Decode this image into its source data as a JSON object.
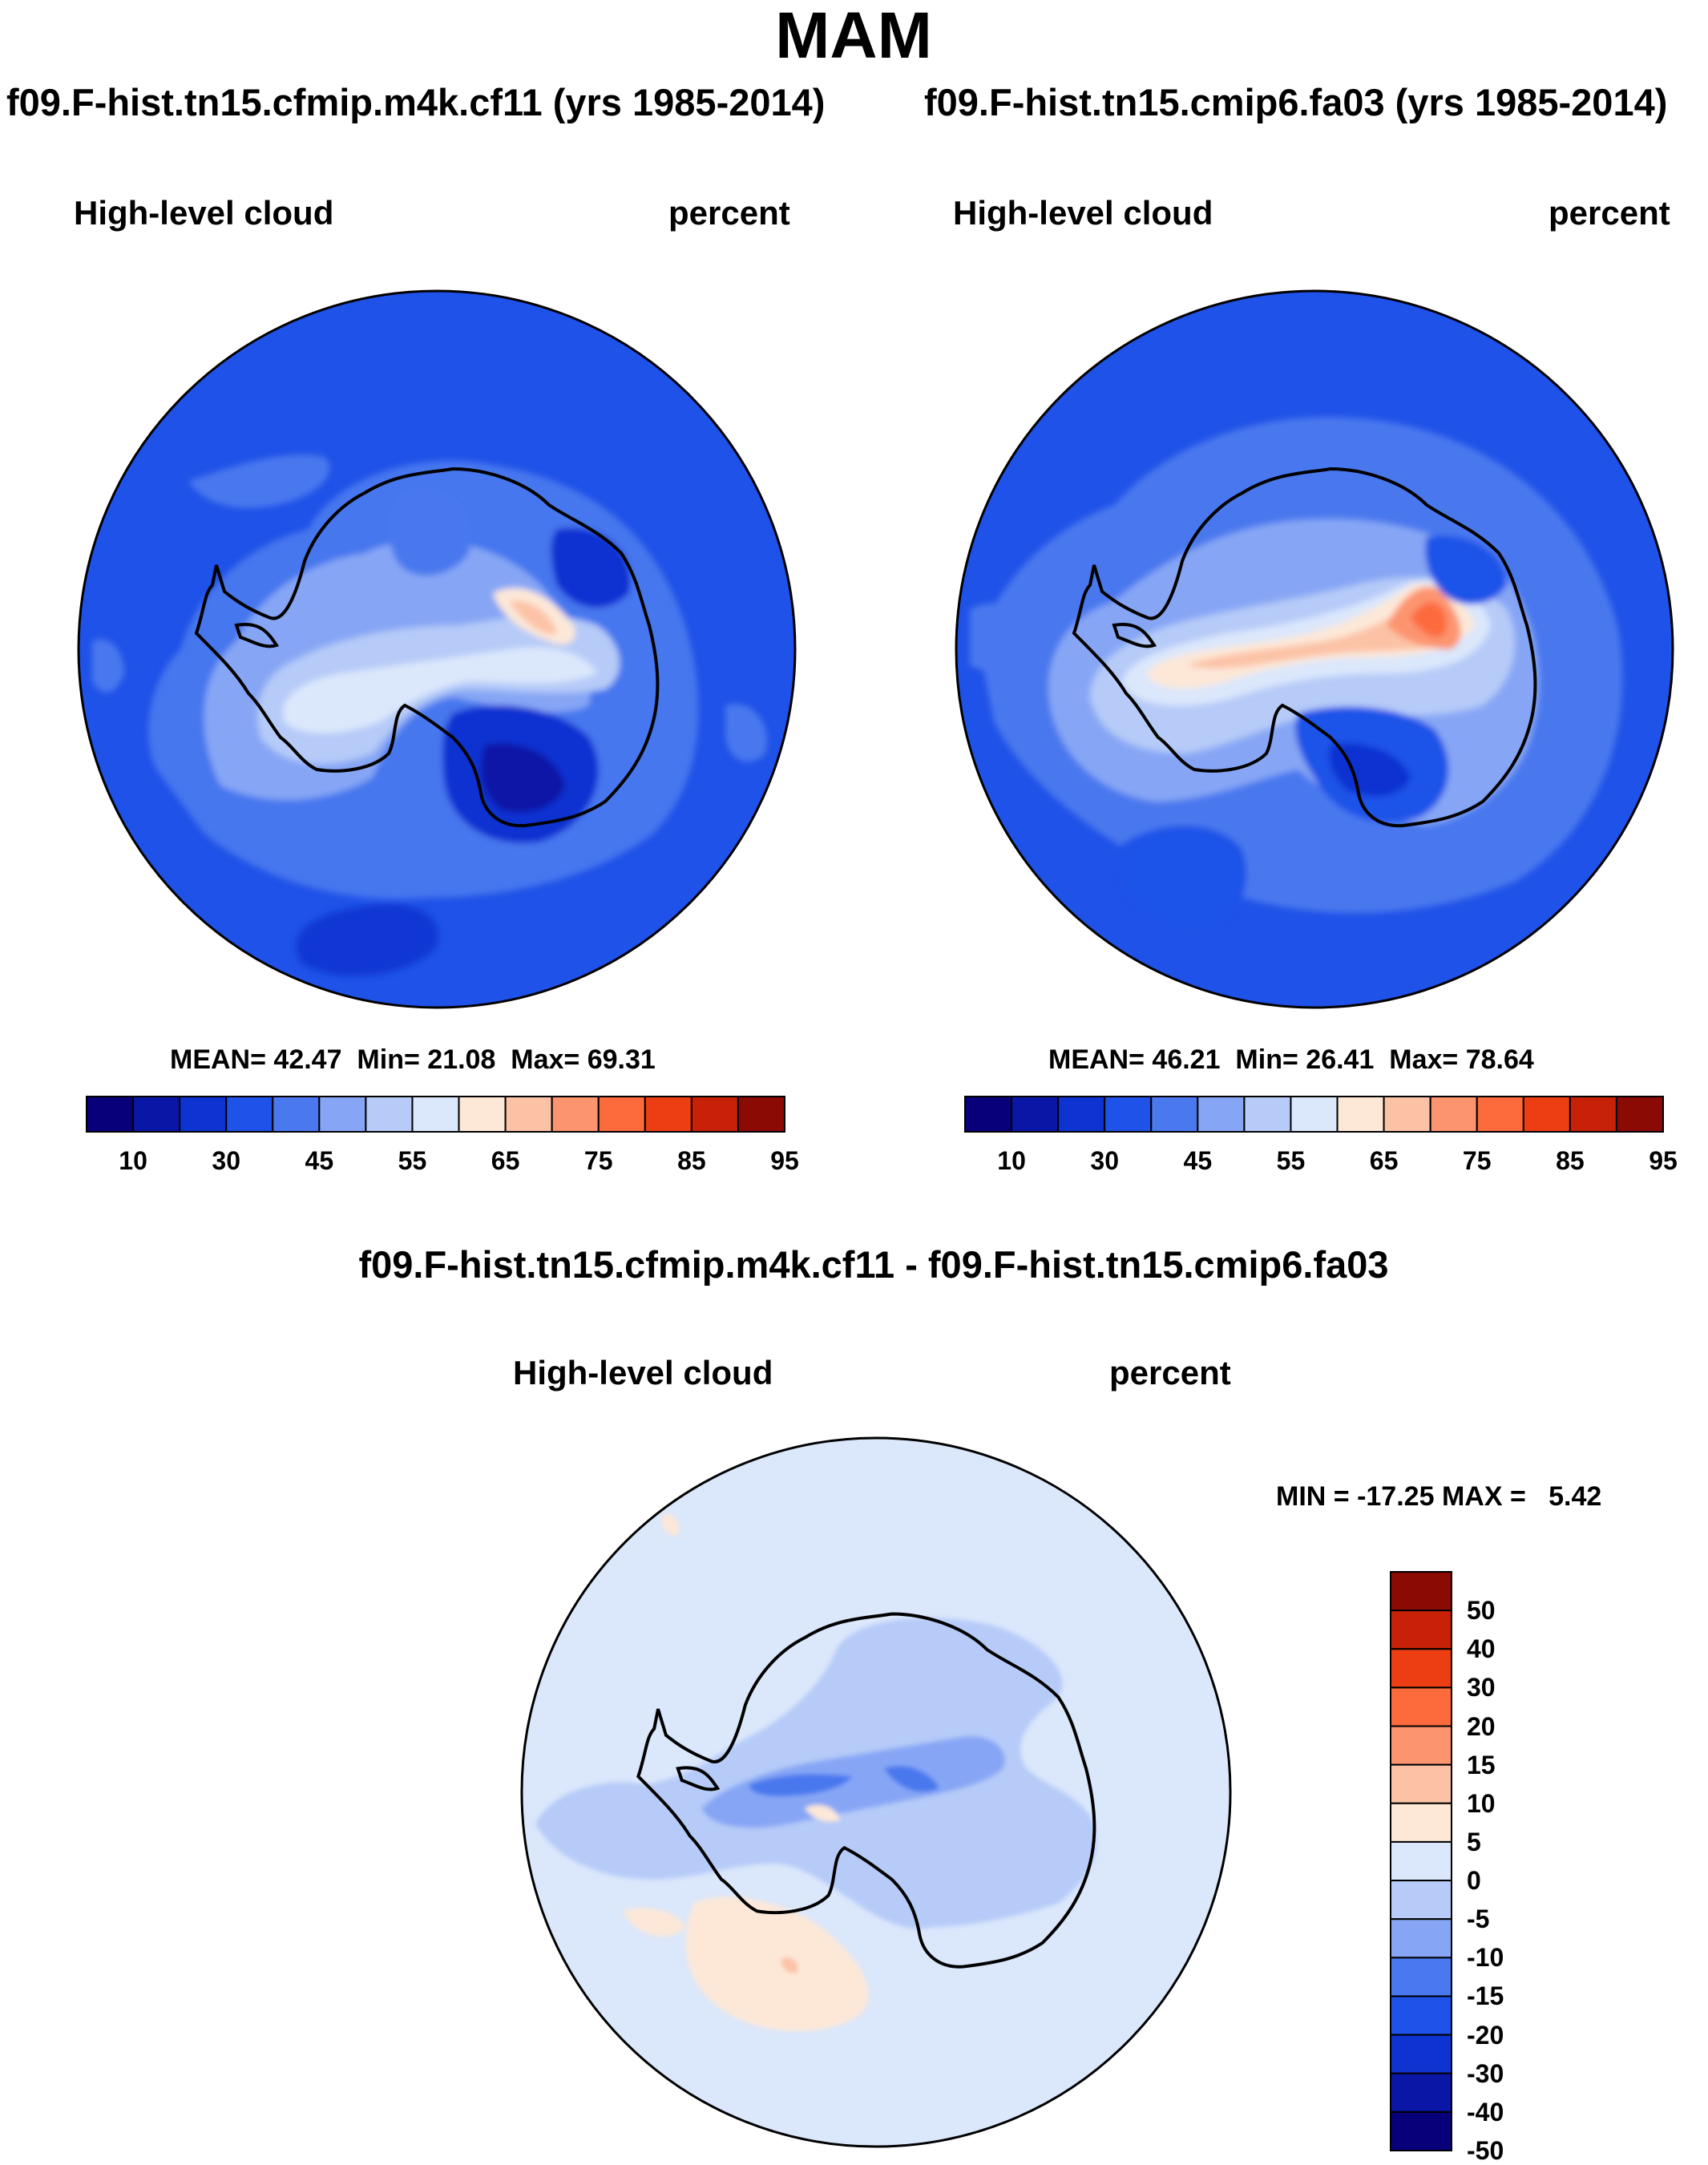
{
  "page": {
    "title": "MAM"
  },
  "panels": [
    {
      "id": "left",
      "run_title": "f09.F-hist.tn15.cfmip.m4k.cf11 (yrs 1985-2014)",
      "variable": "High-level cloud",
      "units": "percent",
      "stats": {
        "mean_label": "MEAN=",
        "mean": "42.47",
        "min_label": "Min=",
        "min": "21.08",
        "max_label": "Max=",
        "max": "69.31"
      }
    },
    {
      "id": "right",
      "run_title": "f09.F-hist.tn15.cmip6.fa03 (yrs 1985-2014)",
      "variable": "High-level cloud",
      "units": "percent",
      "stats": {
        "mean_label": "MEAN=",
        "mean": "46.21",
        "min_label": "Min=",
        "min": "26.41",
        "max_label": "Max=",
        "max": "78.64"
      }
    }
  ],
  "abs_colorbar": {
    "colors": [
      "#08007a",
      "#0a17a6",
      "#0d33d1",
      "#1f52e8",
      "#4a78ee",
      "#86a6f5",
      "#b6cbf8",
      "#dbe7fb",
      "#fde8d8",
      "#fcc2a6",
      "#fc9470",
      "#fd6a3c",
      "#ec3e12",
      "#c72208",
      "#8c0a04"
    ],
    "tick_labels": [
      "10",
      "30",
      "45",
      "55",
      "65",
      "75",
      "85",
      "95"
    ]
  },
  "diff_panel": {
    "title": "f09.F-hist.tn15.cfmip.m4k.cf11 - f09.F-hist.tn15.cmip6.fa03",
    "variable": "High-level cloud",
    "units": "percent",
    "minmax": {
      "min_label": "MIN =",
      "min": "-17.25",
      "max_label": "MAX =",
      "max": "5.42"
    }
  },
  "diff_colorbar": {
    "colors": [
      "#8c0a04",
      "#c72208",
      "#ec3e12",
      "#fd6a3c",
      "#fc9470",
      "#fcc2a6",
      "#fde8d8",
      "#dbe7fb",
      "#b6cbf8",
      "#86a6f5",
      "#4a78ee",
      "#1f52e8",
      "#0d33d1",
      "#0a17a6",
      "#08007a"
    ],
    "tick_labels": [
      "50",
      "40",
      "30",
      "20",
      "15",
      "10",
      "5",
      "0",
      "-5",
      "-10",
      "-15",
      "-20",
      "-30",
      "-40",
      "-50"
    ]
  }
}
